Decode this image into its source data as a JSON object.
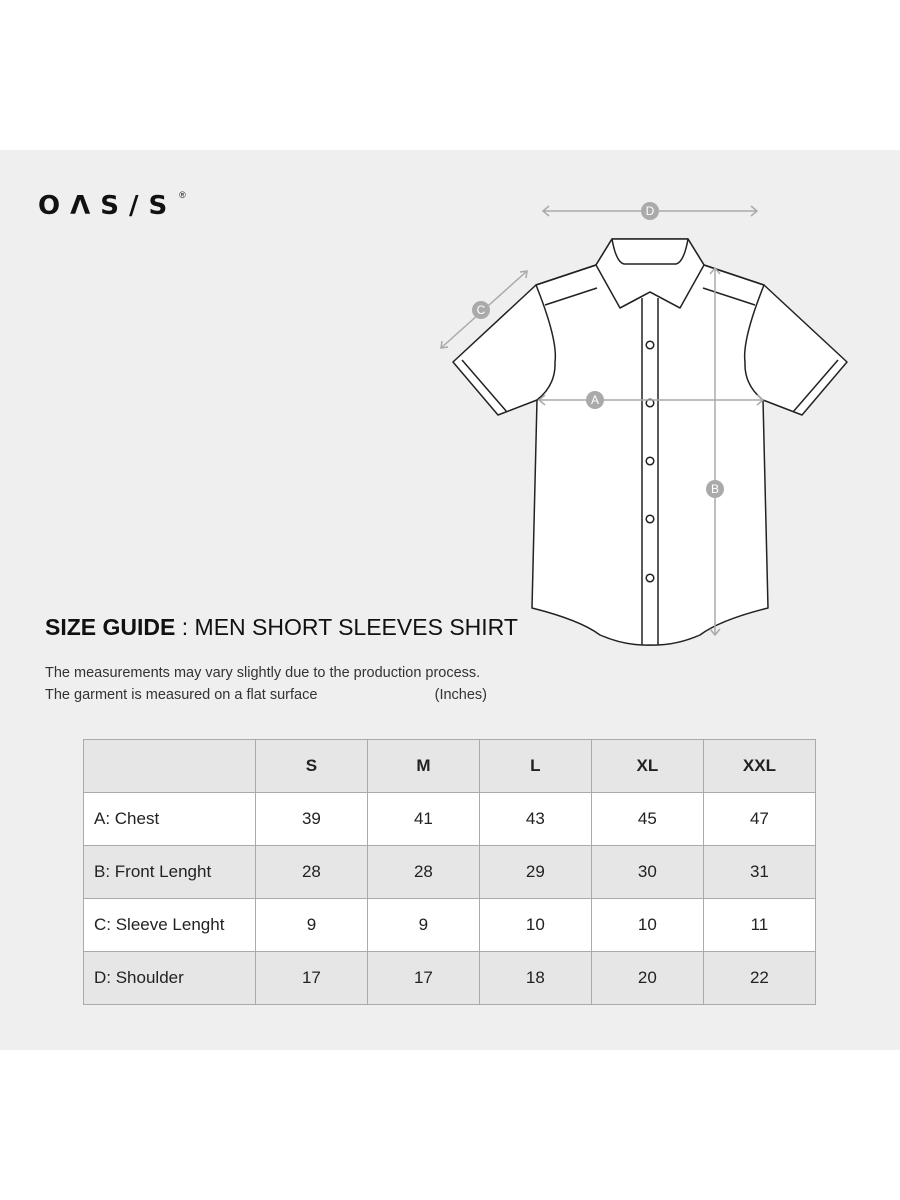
{
  "brand": {
    "logo": "OΛSIS",
    "registered": "®"
  },
  "diagram": {
    "labels": [
      "A",
      "B",
      "C",
      "D"
    ],
    "line_color": "#aaaaaa"
  },
  "title": {
    "bold": "SIZE GUIDE",
    "rest": " : MEN SHORT SLEEVES SHIRT"
  },
  "notes": [
    "The measurements may vary slightly due to the production process.",
    "The garment is measured on a flat surface"
  ],
  "units": "(Inches)",
  "table": {
    "headers": [
      "",
      "S",
      "M",
      "L",
      "XL",
      "XXL"
    ],
    "rows": [
      {
        "label": "A: Chest",
        "values": [
          "39",
          "41",
          "43",
          "45",
          "47"
        ]
      },
      {
        "label": "B: Front Lenght",
        "values": [
          "28",
          "28",
          "29",
          "30",
          "31"
        ]
      },
      {
        "label": "C: Sleeve Lenght",
        "values": [
          "9",
          "9",
          "10",
          "10",
          "11"
        ]
      },
      {
        "label": "D: Shoulder",
        "values": [
          "17",
          "17",
          "18",
          "20",
          "22"
        ]
      }
    ]
  }
}
